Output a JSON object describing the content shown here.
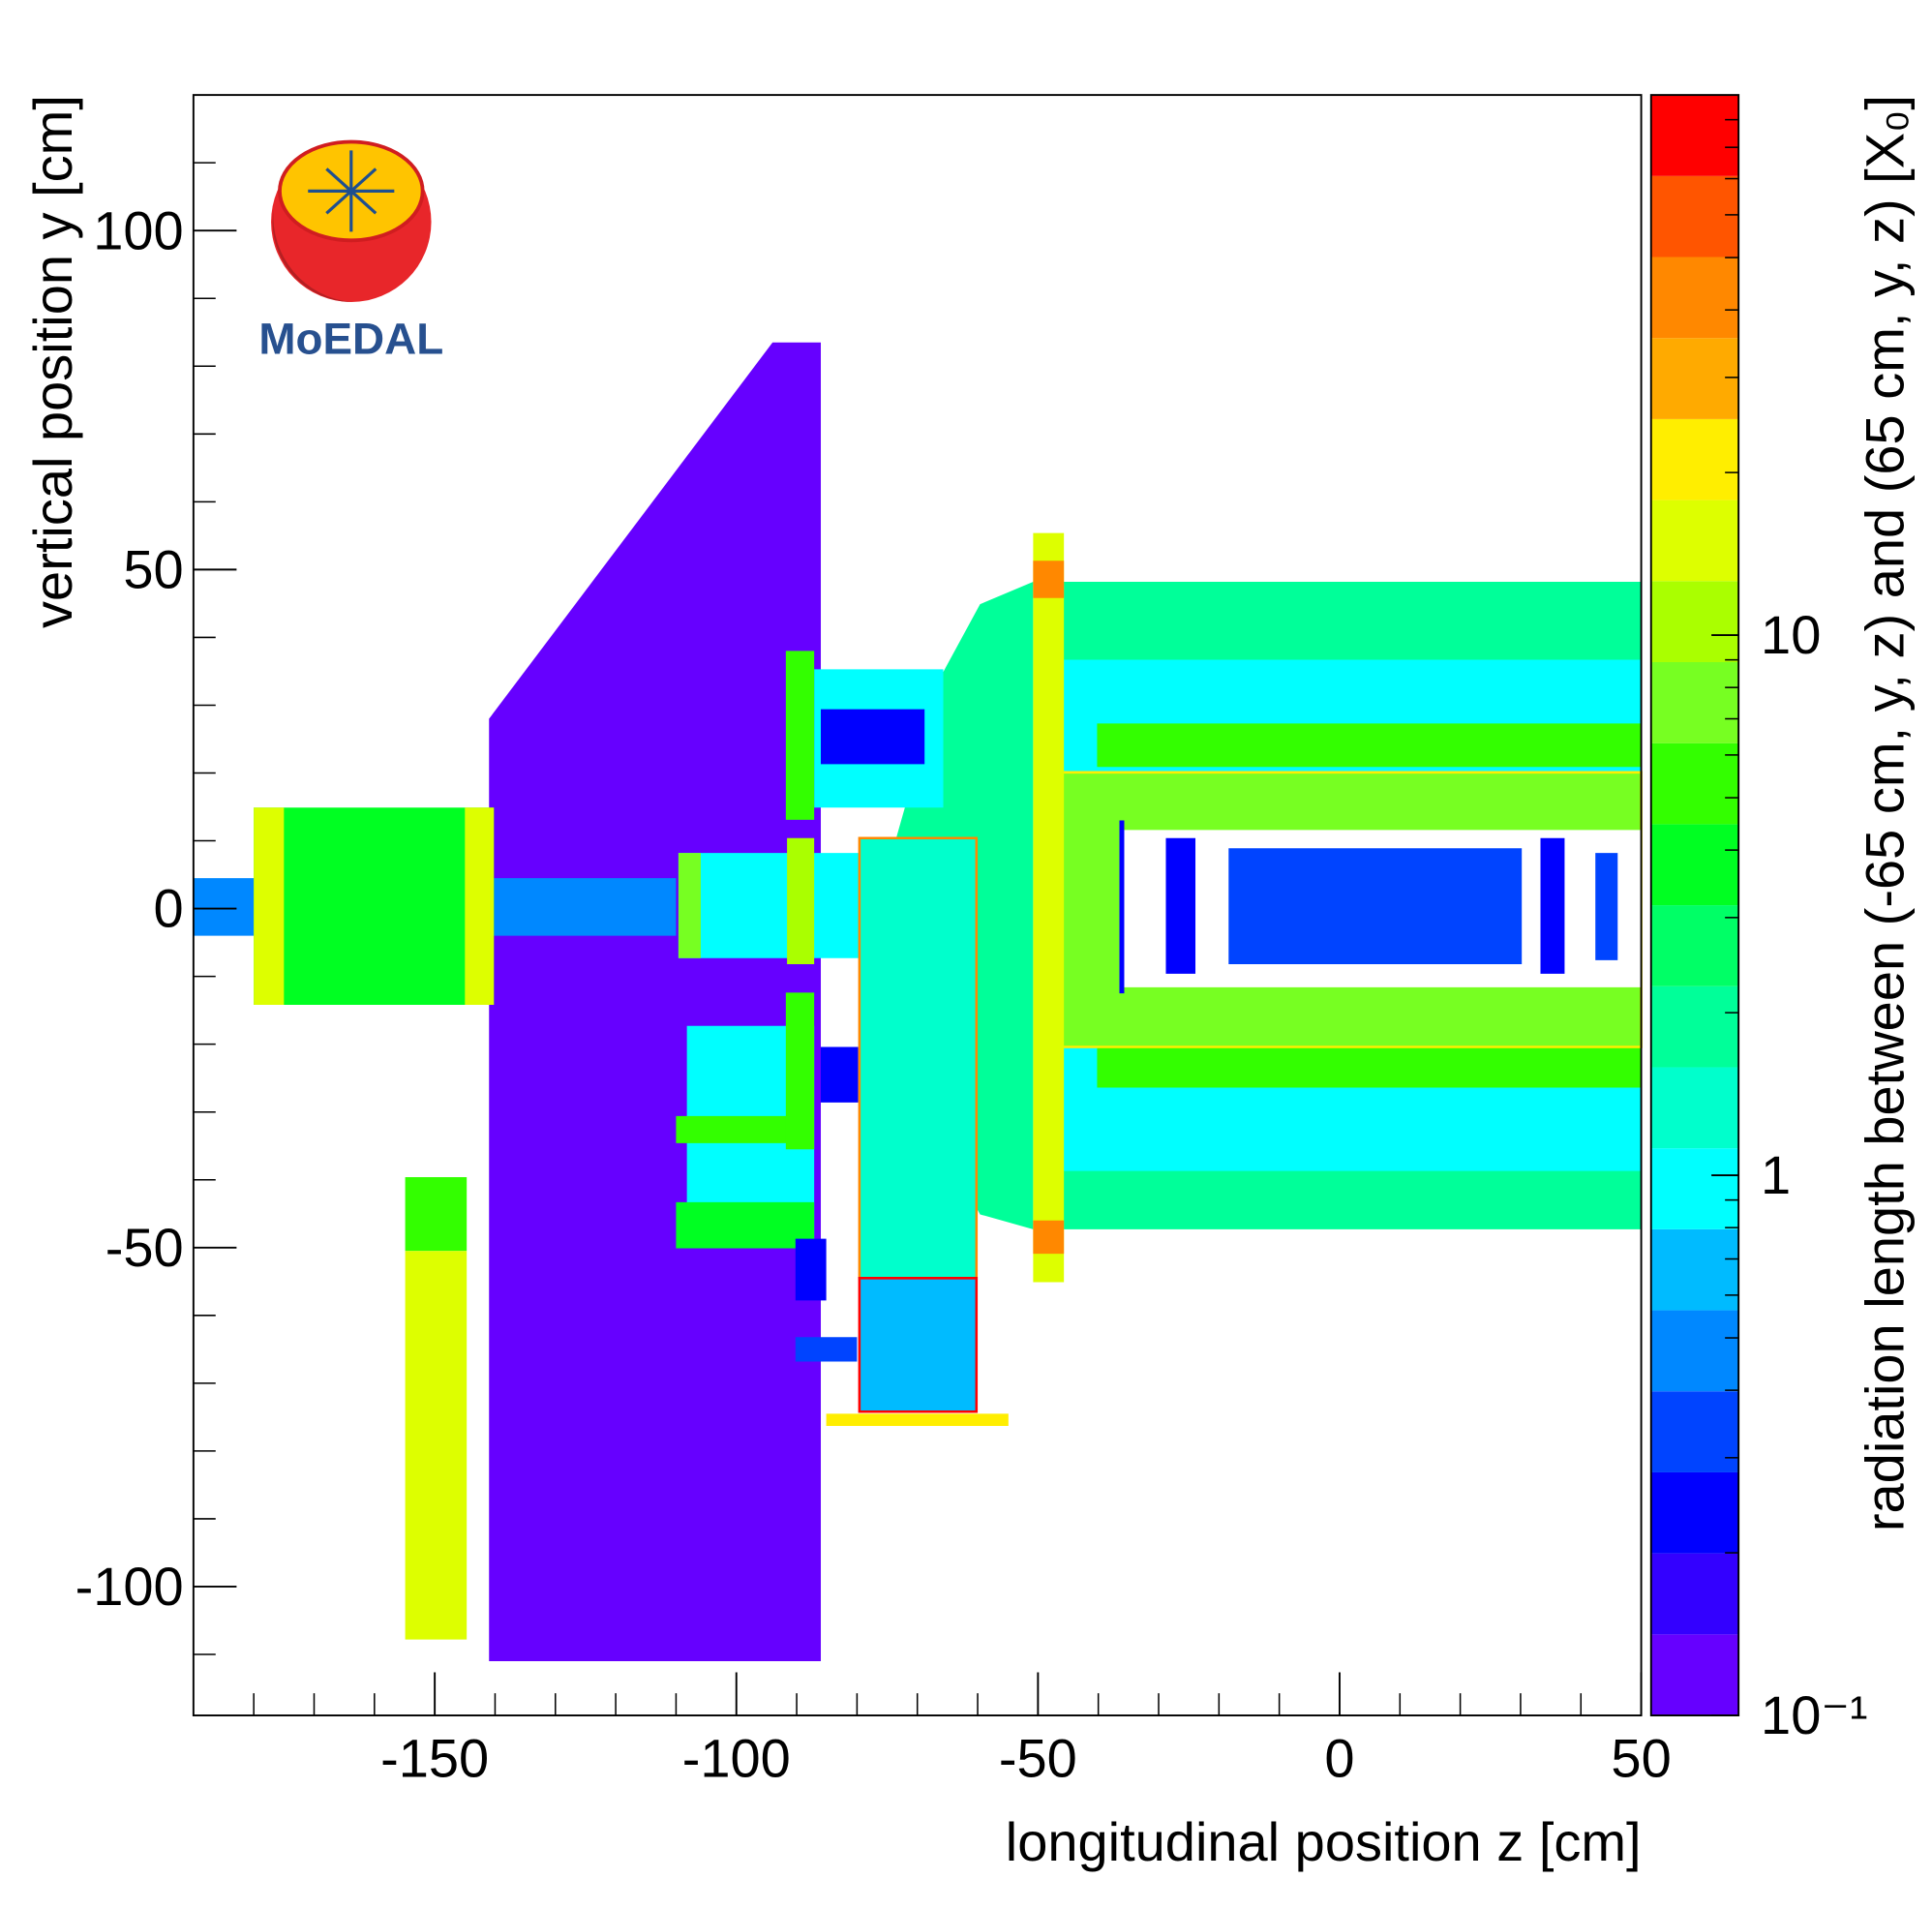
{
  "chart_data": {
    "type": "heatmap",
    "logo_text": "MoEDAL",
    "x_label": "longitudinal position z [cm]",
    "y_label": "vertical position y [cm]",
    "z_label": "radiation length between (-65 cm, y, z) and (65 cm, y, z) [X₀]",
    "xlim": [
      -190,
      50
    ],
    "ylim": [
      -119,
      120
    ],
    "zlim": [
      0.1,
      100
    ],
    "zlog": true,
    "xticks": [
      -150,
      -100,
      -50,
      0,
      50
    ],
    "yticks": [
      -100,
      -50,
      0,
      50,
      100
    ],
    "zticks": [
      {
        "value": 0.1,
        "label": "10⁻¹"
      },
      1,
      10
    ],
    "xminorticks": [
      -180,
      -170,
      -160,
      -140,
      -130,
      -120,
      -110,
      -90,
      -80,
      -70,
      -60,
      -40,
      -30,
      -20,
      -10,
      10,
      20,
      30,
      40
    ],
    "yminorticks": [
      -110,
      -90,
      -80,
      -70,
      -60,
      -40,
      -30,
      -20,
      -10,
      10,
      20,
      30,
      40,
      60,
      70,
      80,
      90,
      110
    ],
    "zminorticks": [
      0.2,
      0.3,
      0.4,
      0.5,
      0.6,
      0.7,
      0.8,
      0.9,
      2,
      3,
      4,
      5,
      6,
      7,
      8,
      9,
      20,
      30,
      40,
      50,
      60,
      70,
      80,
      90
    ],
    "palette": [
      "#6600ff",
      "#3300ff",
      "#0000ff",
      "#0044ff",
      "#0088ff",
      "#00bbff",
      "#00ffff",
      "#00ffcc",
      "#00ff99",
      "#00ff66",
      "#00ff22",
      "#33ff00",
      "#77ff22",
      "#aaff00",
      "#ddff00",
      "#ffee00",
      "#ffaa00",
      "#ff8800",
      "#ff5500",
      "#ff0000"
    ],
    "regions": [
      {
        "points": [
          [
            -141,
            -111
          ],
          [
            -86,
            -111
          ],
          [
            -86,
            83.5
          ],
          [
            -94,
            83.5
          ],
          [
            -141,
            28
          ]
        ],
        "value": 0.11
      },
      {
        "points": [
          [
            -190,
            -4
          ],
          [
            -110,
            -4
          ],
          [
            -110,
            4.5
          ],
          [
            -190,
            4.5
          ]
        ],
        "value": 0.45
      },
      {
        "points": [
          [
            -180,
            -14.2
          ],
          [
            -140.2,
            -14.2
          ],
          [
            -140.2,
            14.9
          ],
          [
            -180,
            14.9
          ]
        ],
        "value": 4
      },
      {
        "points": [
          [
            -180,
            -14.2
          ],
          [
            -175,
            -14.2
          ],
          [
            -175,
            14.9
          ],
          [
            -180,
            14.9
          ]
        ],
        "value": 15
      },
      {
        "points": [
          [
            -145,
            -14.2
          ],
          [
            -140.2,
            -14.2
          ],
          [
            -140.2,
            14.9
          ],
          [
            -145,
            14.9
          ]
        ],
        "value": 15
      },
      {
        "points": [
          [
            -154.9,
            -50.5
          ],
          [
            -144.7,
            -50.5
          ],
          [
            -144.7,
            -39.6
          ],
          [
            -154.9,
            -39.6
          ]
        ],
        "value": 6
      },
      {
        "points": [
          [
            -154.9,
            -107.8
          ],
          [
            -144.7,
            -107.8
          ],
          [
            -144.7,
            -50.5
          ],
          [
            -154.9,
            -50.5
          ]
        ],
        "value": 15
      },
      {
        "points": [
          [
            -45.9,
            -47.3
          ],
          [
            50,
            -47.3
          ],
          [
            50,
            48.2
          ],
          [
            -45.9,
            48.2
          ]
        ],
        "value": 2
      },
      {
        "points": [
          [
            -45.9,
            -38.7
          ],
          [
            50,
            -38.7
          ],
          [
            50,
            36.7
          ],
          [
            -45.9,
            36.7
          ]
        ],
        "value": 1
      },
      {
        "points": [
          [
            -40.2,
            20.9
          ],
          [
            50,
            20.9
          ],
          [
            50,
            27.3
          ],
          [
            -40.2,
            27.3
          ]
        ],
        "value": 5
      },
      {
        "points": [
          [
            -40.2,
            -26.4
          ],
          [
            50,
            -26.4
          ],
          [
            50,
            -19.6
          ],
          [
            -40.2,
            -19.6
          ]
        ],
        "value": 5
      },
      {
        "points": [
          [
            -46,
            -20.4
          ],
          [
            50,
            -20.4
          ],
          [
            50,
            20.1
          ],
          [
            -46,
            20.1
          ]
        ],
        "value": 8,
        "stroke": "#ffee00"
      },
      {
        "points": [
          [
            -36.5,
            -11.6
          ],
          [
            50,
            -11.6
          ],
          [
            50,
            11.6
          ],
          [
            -36.5,
            11.6
          ]
        ],
        "value": 0
      },
      {
        "points": [
          [
            -36.5,
            -12.5
          ],
          [
            -35.7,
            -12.5
          ],
          [
            -35.7,
            13
          ],
          [
            -36.5,
            13
          ]
        ],
        "value": 0.2
      },
      {
        "points": [
          [
            -28.8,
            -9.6
          ],
          [
            -23.9,
            -9.6
          ],
          [
            -23.9,
            10.4
          ],
          [
            -28.8,
            10.4
          ]
        ],
        "value": 0.2
      },
      {
        "points": [
          [
            -18.4,
            -8.2
          ],
          [
            30.2,
            -8.2
          ],
          [
            30.2,
            8.9
          ],
          [
            -18.4,
            8.9
          ]
        ],
        "value": 0.3
      },
      {
        "points": [
          [
            33.3,
            -9.6
          ],
          [
            37.3,
            -9.6
          ],
          [
            37.3,
            10.4
          ],
          [
            33.3,
            10.4
          ]
        ],
        "value": 0.2
      },
      {
        "points": [
          [
            42.4,
            -7.6
          ],
          [
            46.1,
            -7.6
          ],
          [
            46.1,
            8.2
          ],
          [
            42.4,
            8.2
          ]
        ],
        "value": 0.3
      },
      {
        "points": [
          [
            -73.5,
            10.4
          ],
          [
            -65.7,
            34.9
          ],
          [
            -59.6,
            44.9
          ],
          [
            -50.8,
            48.2
          ],
          [
            -50.8,
            -47.3
          ],
          [
            -59.6,
            -45.1
          ],
          [
            -65.7,
            -35.1
          ],
          [
            -73.5,
            -9.6
          ]
        ],
        "value": 1.8
      },
      {
        "points": [
          [
            -50.8,
            -55.1
          ],
          [
            -45.7,
            -55.1
          ],
          [
            -45.7,
            55.4
          ],
          [
            -50.8,
            55.4
          ]
        ],
        "value": 15
      },
      {
        "points": [
          [
            -50.8,
            45.8
          ],
          [
            -45.7,
            45.8
          ],
          [
            -45.7,
            51.3
          ],
          [
            -50.8,
            51.3
          ]
        ],
        "value": 40
      },
      {
        "points": [
          [
            -50.8,
            -50.9
          ],
          [
            -45.7,
            -50.9
          ],
          [
            -45.7,
            -46
          ],
          [
            -50.8,
            -46
          ]
        ],
        "value": 40
      },
      {
        "points": [
          [
            -87.1,
            14.9
          ],
          [
            -65.7,
            14.9
          ],
          [
            -65.7,
            35.3
          ],
          [
            -87.1,
            35.3
          ]
        ],
        "value": 1
      },
      {
        "points": [
          [
            -86,
            21.3
          ],
          [
            -68.8,
            21.3
          ],
          [
            -68.8,
            29.4
          ],
          [
            -86,
            29.4
          ]
        ],
        "value": 0.25
      },
      {
        "points": [
          [
            -91.8,
            13.1
          ],
          [
            -87.1,
            13.1
          ],
          [
            -87.1,
            38
          ],
          [
            -91.8,
            38
          ]
        ],
        "value": 6
      },
      {
        "points": [
          [
            -108.2,
            -48.7
          ],
          [
            -87.1,
            -48.7
          ],
          [
            -87.1,
            -17.3
          ],
          [
            -108.2,
            -17.3
          ]
        ],
        "value": 1
      },
      {
        "points": [
          [
            -110,
            -34.6
          ],
          [
            -91.4,
            -34.6
          ],
          [
            -91.4,
            -30.6
          ],
          [
            -110,
            -30.6
          ]
        ],
        "value": 5
      },
      {
        "points": [
          [
            -110,
            -50.1
          ],
          [
            -87.1,
            -50.1
          ],
          [
            -87.1,
            -43.3
          ],
          [
            -110,
            -43.3
          ]
        ],
        "value": 4
      },
      {
        "points": [
          [
            -91.8,
            -35.5
          ],
          [
            -87.1,
            -35.5
          ],
          [
            -87.1,
            -12.4
          ],
          [
            -91.8,
            -12.4
          ]
        ],
        "value": 6
      },
      {
        "points": [
          [
            -86,
            -28.6
          ],
          [
            -79.8,
            -28.6
          ],
          [
            -79.8,
            -20.4
          ],
          [
            -86,
            -20.4
          ]
        ],
        "value": 0.25
      },
      {
        "points": [
          [
            -109.6,
            -7.3
          ],
          [
            -74.9,
            -7.3
          ],
          [
            -74.9,
            8.2
          ],
          [
            -109.6,
            8.2
          ]
        ],
        "value": 1
      },
      {
        "points": [
          [
            -109.6,
            -7.3
          ],
          [
            -105.9,
            -7.3
          ],
          [
            -105.9,
            8.2
          ],
          [
            -109.6,
            8.2
          ]
        ],
        "value": 8
      },
      {
        "points": [
          [
            -91.6,
            -8.2
          ],
          [
            -87.1,
            -8.2
          ],
          [
            -87.1,
            10.4
          ],
          [
            -91.6,
            10.4
          ]
        ],
        "value": 10
      },
      {
        "points": [
          [
            -79.6,
            -54.5
          ],
          [
            -60.2,
            -54.5
          ],
          [
            -60.2,
            10.4
          ],
          [
            -79.6,
            10.4
          ]
        ],
        "value": 1.5,
        "stroke": "#ff8800"
      },
      {
        "points": [
          [
            -79.6,
            -74.2
          ],
          [
            -60.2,
            -74.2
          ],
          [
            -60.2,
            -54.5
          ],
          [
            -79.6,
            -54.5
          ]
        ],
        "value": 0.6,
        "stroke": "#ff0000"
      },
      {
        "points": [
          [
            -85.1,
            -76.3
          ],
          [
            -54.9,
            -76.3
          ],
          [
            -54.9,
            -74.5
          ],
          [
            -85.1,
            -74.5
          ]
        ],
        "value": 20
      },
      {
        "points": [
          [
            -90.2,
            -57.8
          ],
          [
            -85.1,
            -57.8
          ],
          [
            -85.1,
            -48.7
          ],
          [
            -90.2,
            -48.7
          ]
        ],
        "value": 0.2
      },
      {
        "points": [
          [
            -90.2,
            -66.8
          ],
          [
            -80,
            -66.8
          ],
          [
            -80,
            -63.2
          ],
          [
            -90.2,
            -63.2
          ]
        ],
        "value": 0.3
      }
    ]
  }
}
